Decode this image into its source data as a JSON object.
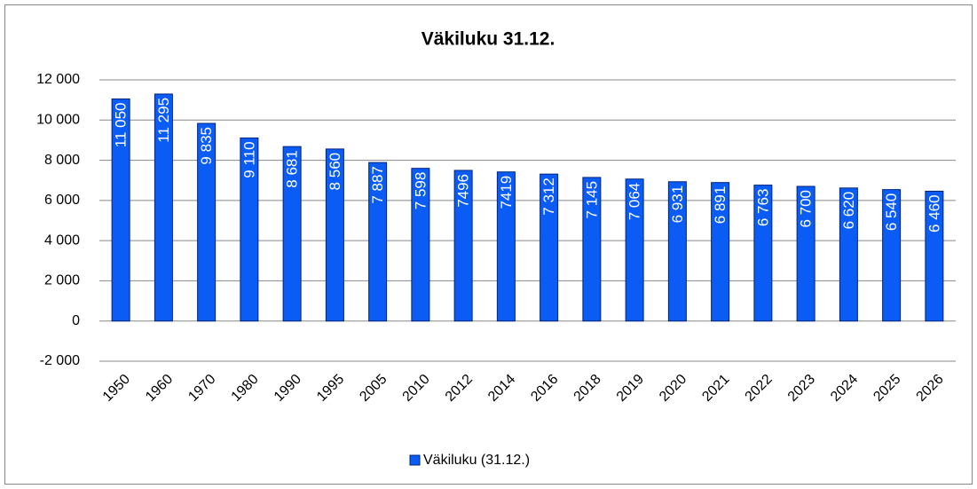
{
  "chart_data": {
    "type": "bar",
    "title": "Väkiluku 31.12.",
    "categories": [
      "1950",
      "1960",
      "1970",
      "1980",
      "1990",
      "1995",
      "2005",
      "2010",
      "2012",
      "2014",
      "2016",
      "2018",
      "2019",
      "2020",
      "2021",
      "2022",
      "2023",
      "2024",
      "2025",
      "2026"
    ],
    "series": [
      {
        "name": "Väkiluku (31.12.)",
        "color": "#0a5cf5",
        "values": [
          11050,
          11295,
          9835,
          9110,
          8681,
          8560,
          7887,
          7598,
          7496,
          7419,
          7312,
          7145,
          7064,
          6931,
          6891,
          6763,
          6700,
          6620,
          6540,
          6460
        ],
        "value_labels": [
          "11 050",
          "11 295",
          "9 835",
          "9 110",
          "8 681",
          "8 560",
          "7 887",
          "7 598",
          "7496",
          "7419",
          "7 312",
          "7 145",
          "7 064",
          "6 931",
          "6 891",
          "6 763",
          "6 700",
          "6 620",
          "6 540",
          "6 460"
        ]
      }
    ],
    "ylim": [
      -2000,
      12000
    ],
    "yticks": [
      {
        "value": -2000,
        "label": "-2 000"
      },
      0,
      {
        "value": 2000,
        "label": "2 000"
      },
      {
        "value": 4000,
        "label": "4 000"
      },
      {
        "value": 6000,
        "label": "6 000"
      },
      {
        "value": 8000,
        "label": "8 000"
      },
      {
        "value": 10000,
        "label": "10 000"
      },
      {
        "value": 12000,
        "label": "12 000"
      }
    ],
    "grid": true,
    "legend": "bottom"
  }
}
